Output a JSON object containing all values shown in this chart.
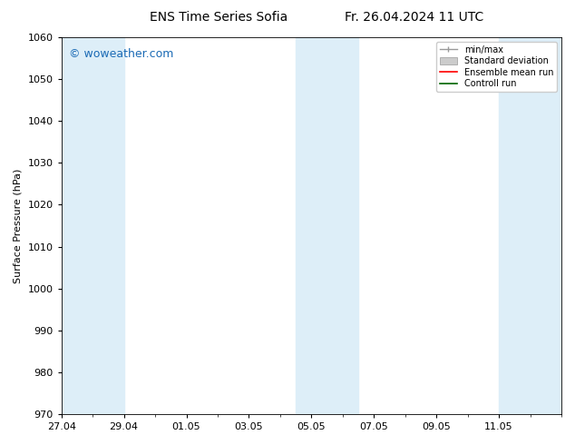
{
  "title_left": "ENS Time Series Sofia",
  "title_right": "Fr. 26.04.2024 11 UTC",
  "ylabel": "Surface Pressure (hPa)",
  "ylim": [
    970,
    1060
  ],
  "yticks": [
    970,
    980,
    990,
    1000,
    1010,
    1020,
    1030,
    1040,
    1050,
    1060
  ],
  "xlim": [
    0,
    16
  ],
  "xtick_labels": [
    "27.04",
    "29.04",
    "01.05",
    "03.05",
    "05.05",
    "07.05",
    "09.05",
    "11.05"
  ],
  "xtick_positions": [
    0,
    2,
    4,
    6,
    8,
    10,
    12,
    14
  ],
  "shaded_bands": [
    {
      "x_start": 0,
      "x_end": 1
    },
    {
      "x_start": 1,
      "x_end": 2
    },
    {
      "x_start": 7.5,
      "x_end": 8.5
    },
    {
      "x_start": 8.5,
      "x_end": 9.5
    },
    {
      "x_start": 14,
      "x_end": 16
    }
  ],
  "shade_color": "#ddeef8",
  "watermark": "© woweather.com",
  "watermark_color": "#1a6ab5",
  "background_color": "#ffffff",
  "axes_bg_color": "#ffffff",
  "title_fontsize": 10,
  "label_fontsize": 8,
  "tick_fontsize": 8
}
